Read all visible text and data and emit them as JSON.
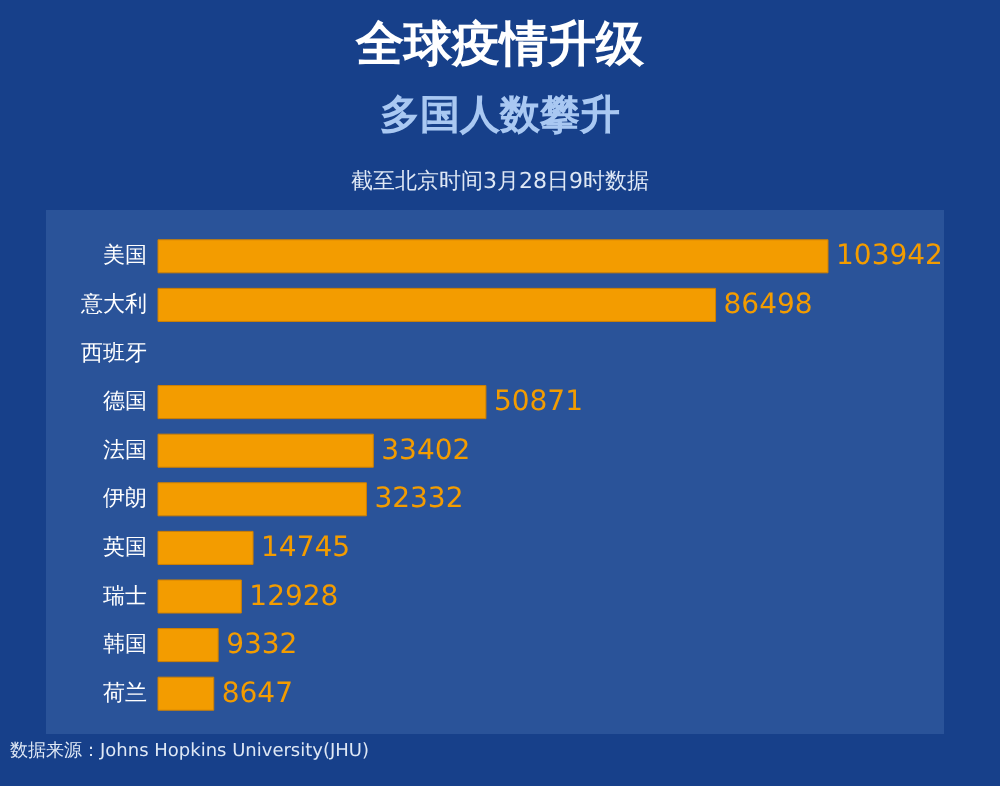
{
  "chart_data": {
    "type": "bar",
    "orientation": "horizontal",
    "title": "全球疫情升级",
    "subtitle": "多国人数攀升",
    "annotations": [
      "截至北京时间3月28日9时数据",
      "数据来源：Johns Hopkins University(JHU)"
    ],
    "categories": [
      "美国",
      "意大利",
      "西班牙",
      "德国",
      "法国",
      "伊朗",
      "英国",
      "瑞士",
      "韩国",
      "荷兰"
    ],
    "values": [
      103942,
      86498,
      null,
      50871,
      33402,
      32332,
      14745,
      12928,
      9332,
      8647
    ],
    "value_labels": [
      "103942",
      "86498",
      null,
      "50871",
      "33402",
      "32332",
      "14745",
      "12928",
      "9332",
      "8647"
    ],
    "color": "#f39c00"
  }
}
